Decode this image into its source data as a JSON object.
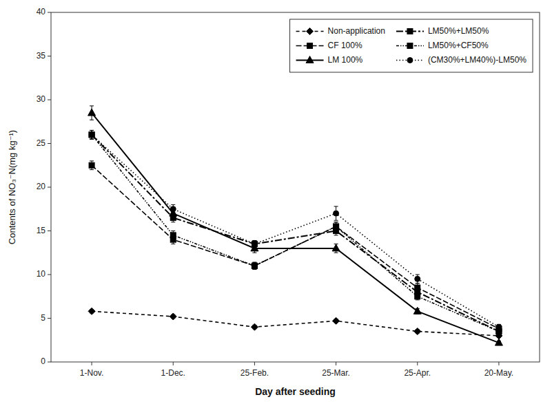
{
  "chart_data": {
    "type": "line",
    "categories": [
      "1-Nov.",
      "1-Dec.",
      "25-Feb.",
      "25-Mar.",
      "25-Apr.",
      "20-May."
    ],
    "series": [
      {
        "name": "Non-application",
        "color": "black",
        "marker": "diamond",
        "line_style": "dashed",
        "values": [
          5.8,
          5.2,
          4.0,
          4.7,
          3.5,
          3.0
        ],
        "errors": [
          0.2,
          0.2,
          0.2,
          0.2,
          0.2,
          0.2
        ]
      },
      {
        "name": "CF 100%",
        "color": "black",
        "marker": "square",
        "line_style": "longdashed",
        "values": [
          22.5,
          14.0,
          11.0,
          15.5,
          8.5,
          3.8
        ],
        "errors": [
          0.5,
          0.5,
          0.4,
          0.5,
          0.5,
          0.3
        ]
      },
      {
        "name": "LM 100%",
        "color": "black",
        "marker": "triangle",
        "line_style": "solid",
        "values": [
          28.5,
          17.0,
          13.0,
          13.0,
          5.8,
          2.2
        ],
        "errors": [
          0.8,
          0.5,
          0.5,
          0.5,
          0.3,
          0.2
        ]
      },
      {
        "name": "LM50%+LM50%",
        "color": "black",
        "marker": "square",
        "line_style": "dashdot",
        "values": [
          26.0,
          16.5,
          13.5,
          15.0,
          8.0,
          3.5
        ],
        "errors": [
          0.5,
          0.5,
          0.4,
          0.5,
          0.4,
          0.3
        ]
      },
      {
        "name": "LM50%+CF50%",
        "color": "black",
        "marker": "square",
        "line_style": "dashdotdot",
        "values": [
          26.0,
          14.5,
          11.0,
          15.5,
          7.5,
          3.5
        ],
        "errors": [
          0.5,
          0.5,
          0.4,
          0.5,
          0.4,
          0.3
        ]
      },
      {
        "name": "(CM30%+LM40%)-LM50%",
        "color": "black",
        "marker": "circle",
        "line_style": "dotted",
        "values": [
          26.0,
          17.5,
          13.5,
          17.0,
          9.5,
          4.0
        ],
        "errors": [
          0.5,
          0.5,
          0.4,
          0.8,
          0.5,
          0.3
        ]
      }
    ],
    "xlabel": "Day after seeding",
    "ylabel": "Contents of NO₃⁻N(mg kg⁻¹)",
    "ylim": [
      0,
      40
    ],
    "yticks": [
      0,
      5,
      10,
      15,
      20,
      25,
      30,
      35,
      40
    ],
    "grid": false,
    "legend": "upper right"
  }
}
